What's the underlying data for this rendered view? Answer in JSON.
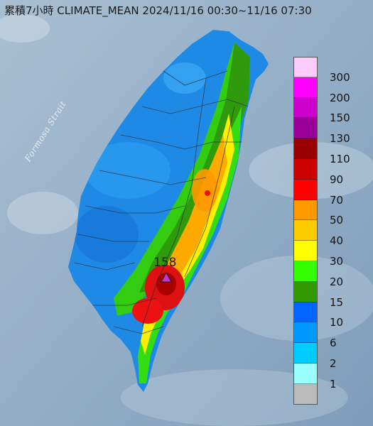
{
  "title": "累積7小時 CLIMATE_MEAN 2024/11/16 00:30~11/16 07:30",
  "strait_label": "Formosa Strait",
  "peak": {
    "value": "158",
    "marker_color": "#cc33cc"
  },
  "legend": {
    "ticks": [
      "300",
      "200",
      "150",
      "130",
      "110",
      "90",
      "70",
      "50",
      "40",
      "30",
      "20",
      "15",
      "10",
      "6",
      "2",
      "1"
    ],
    "colors": [
      "#ffccff",
      "#ff00ff",
      "#cc00cc",
      "#990099",
      "#990000",
      "#cc0000",
      "#ff0000",
      "#ff9900",
      "#ffcc00",
      "#ffff00",
      "#33ff00",
      "#339900",
      "#0066ff",
      "#0099ff",
      "#00ccff",
      "#99ffff",
      "#bbbbbb"
    ]
  }
}
